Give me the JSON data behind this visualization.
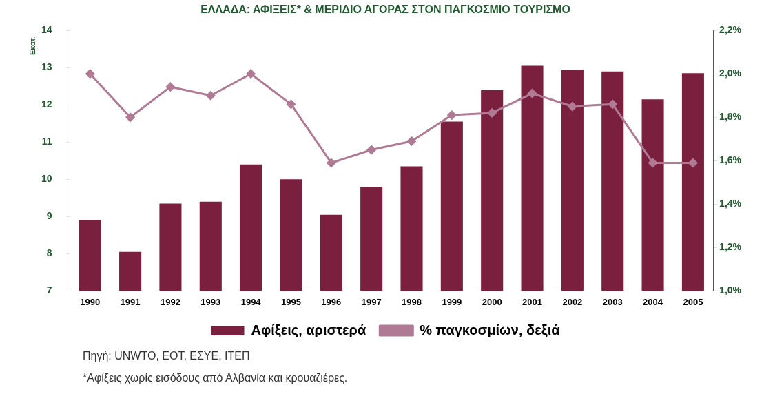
{
  "chart_data": {
    "type": "bar",
    "title": "ΕΛΛΑΔΑ: ΑΦΙΞΕΙΣ* & ΜΕΡΙΔΙΟ ΑΓΟΡΑΣ ΣΤΟΝ ΠΑΓΚΟΣΜΙΟ ΤΟΥΡΙΣΜΟ",
    "ylabel": "Εκατ.",
    "categories": [
      "1990",
      "1991",
      "1992",
      "1993",
      "1994",
      "1995",
      "1996",
      "1997",
      "1998",
      "1999",
      "2000",
      "2001",
      "2002",
      "2003",
      "2004",
      "2005"
    ],
    "series": [
      {
        "name": "Αφίξεις, αριστερά",
        "color": "#7a1f3d",
        "values": [
          8.9,
          8.05,
          9.35,
          9.4,
          10.4,
          10.0,
          9.05,
          9.8,
          10.35,
          11.55,
          12.4,
          13.05,
          12.95,
          12.9,
          12.15,
          12.85
        ]
      },
      {
        "name": "% παγκοσμίων, δεξιά",
        "type": "line",
        "axis": "y2",
        "color": "#b07a95",
        "marker": "diamond",
        "values": [
          2.0,
          1.8,
          1.94,
          1.9,
          2.0,
          1.86,
          1.59,
          1.65,
          1.69,
          1.81,
          1.82,
          1.91,
          1.85,
          1.86,
          1.59,
          1.59
        ]
      }
    ],
    "ylim": [
      7,
      14
    ],
    "yticks": [
      7,
      8,
      9,
      10,
      11,
      12,
      13,
      14
    ],
    "y2lim": [
      1.0,
      2.2
    ],
    "y2ticks": [
      {
        "value": 1.0,
        "label": "1,0%"
      },
      {
        "value": 1.2,
        "label": "1,2%"
      },
      {
        "value": 1.4,
        "label": "1,4%"
      },
      {
        "value": 1.6,
        "label": "1,6%"
      },
      {
        "value": 1.8,
        "label": "1,8%"
      },
      {
        "value": 2.0,
        "label": "2,0%"
      },
      {
        "value": 2.2,
        "label": "2,2%"
      }
    ],
    "grid": false,
    "legend": "bottom",
    "annotations": [
      "Πηγή: UNWTO, ΕΟΤ, ΕΣΥΕ, ΙΤΕΠ",
      "*Αφίξεις χωρίς εισόδους από Αλβανία και κρουαζιέρες."
    ]
  }
}
